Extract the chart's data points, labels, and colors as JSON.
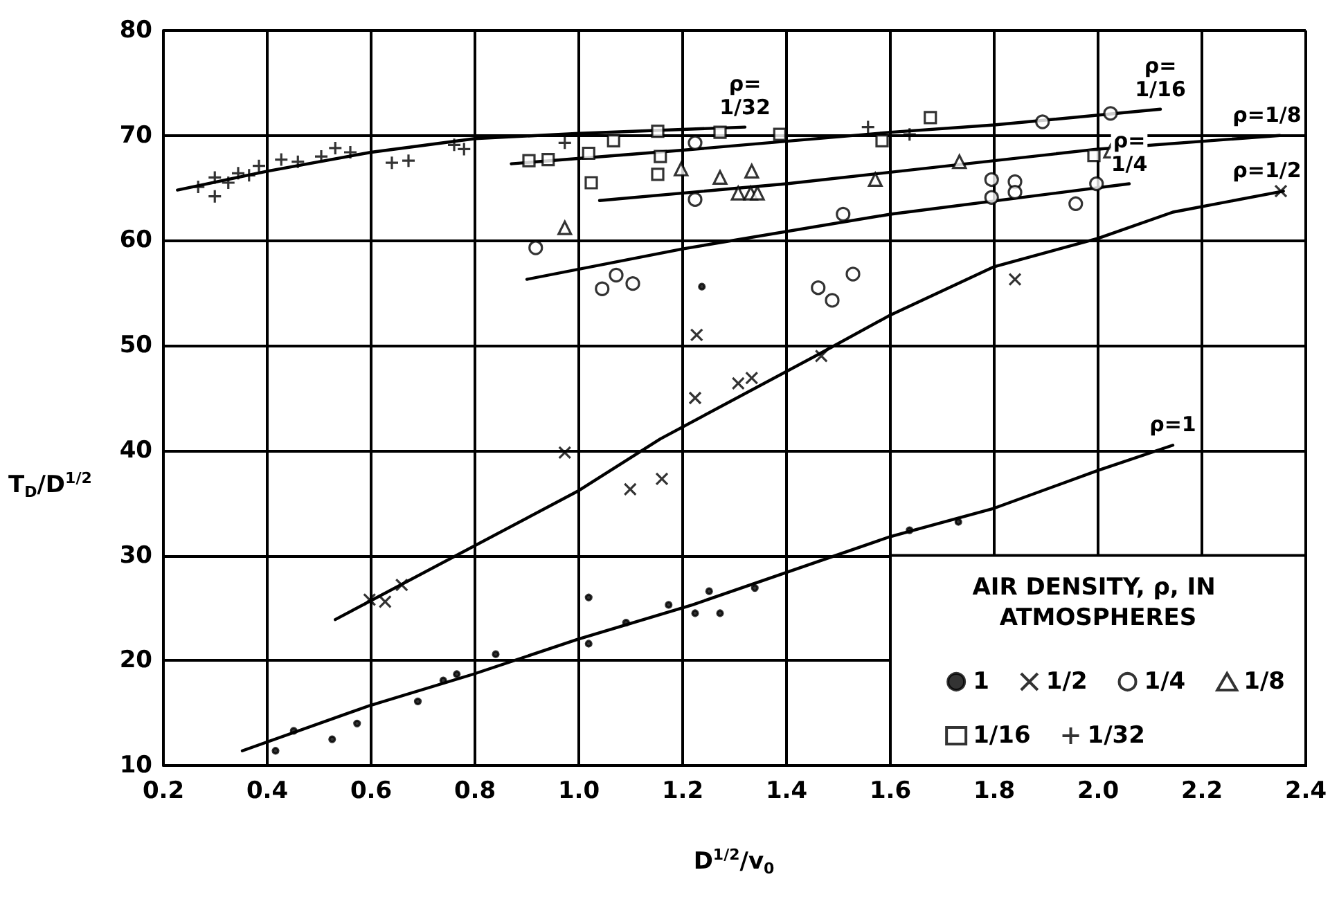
{
  "chart_data": {
    "type": "scatter",
    "xlabel": "D$^{1/2}$/v$_{0}$",
    "ylabel": "T$_{D}$/D$^{1/2}$",
    "legend_title": "AIR DENSITY, ρ, IN ATMOSPHERES",
    "legend": "bottom right",
    "grid": true,
    "xlim": [
      0.2,
      2.4
    ],
    "xticks": [
      0.2,
      0.4,
      0.6,
      0.8,
      {
        "value": 1,
        "label": "1.0"
      },
      1.2,
      1.4,
      1.6,
      1.8,
      {
        "value": 2,
        "label": "2.0"
      },
      2.2,
      2.4
    ],
    "ylim": [
      10,
      80
    ],
    "yticks": [
      10,
      20,
      30,
      40,
      50,
      60,
      70,
      80
    ],
    "series": [
      {
        "name": "1",
        "color": "#000000",
        "marker": "point",
        "x": [
          0.416,
          0.451,
          0.525,
          0.573,
          0.69,
          0.739,
          0.765,
          0.84,
          1.019,
          1.019,
          1.091,
          1.173,
          1.224,
          1.251,
          1.272,
          1.339,
          1.637,
          1.731,
          1.237
        ],
        "values": [
          11.4,
          13.3,
          12.5,
          14.0,
          16.1,
          18.1,
          18.7,
          20.6,
          26.0,
          21.6,
          23.6,
          25.3,
          24.5,
          26.6,
          24.5,
          26.9,
          32.4,
          33.2,
          55.6
        ]
      },
      {
        "name": "1/2",
        "color": "#000000",
        "marker": "cross",
        "x": [
          0.597,
          0.627,
          0.659,
          0.973,
          1.099,
          1.16,
          1.224,
          1.307,
          1.333,
          1.227,
          1.467,
          1.84,
          2.352
        ],
        "values": [
          25.8,
          25.6,
          27.2,
          39.8,
          36.3,
          37.3,
          45.0,
          46.4,
          46.9,
          51.0,
          49.0,
          56.3,
          64.7
        ]
      },
      {
        "name": "1/4",
        "color": "#000000",
        "marker": "circle",
        "x": [
          0.917,
          1.045,
          1.072,
          1.104,
          1.224,
          1.224,
          1.509,
          1.461,
          1.488,
          1.528,
          1.795,
          1.795,
          1.84,
          1.84,
          1.957,
          1.997,
          1.893,
          2.024
        ],
        "values": [
          59.3,
          55.4,
          56.7,
          55.9,
          69.3,
          63.9,
          62.5,
          55.5,
          54.3,
          56.8,
          65.8,
          64.1,
          65.6,
          64.6,
          63.5,
          65.4,
          71.3,
          72.1
        ]
      },
      {
        "name": "1/8",
        "color": "#000000",
        "marker": "triangle",
        "x": [
          0.973,
          1.197,
          1.272,
          1.333,
          1.307,
          1.331,
          1.344,
          1.571,
          1.733,
          2.024
        ],
        "values": [
          61.2,
          66.8,
          66.0,
          66.6,
          64.5,
          64.5,
          64.5,
          65.8,
          67.5,
          68.5
        ]
      },
      {
        "name": "1/16",
        "color": "#000000",
        "marker": "square",
        "x": [
          0.904,
          0.941,
          1.019,
          1.024,
          1.067,
          1.152,
          1.157,
          1.152,
          1.272,
          1.387,
          1.584,
          1.677,
          1.992
        ],
        "values": [
          67.6,
          67.7,
          68.3,
          65.5,
          69.5,
          70.4,
          68.0,
          66.3,
          70.3,
          70.1,
          69.5,
          71.7,
          68.1
        ]
      },
      {
        "name": "1/32",
        "color": "#000000",
        "marker": "plus",
        "x": [
          0.267,
          0.299,
          0.299,
          0.325,
          0.344,
          0.365,
          0.384,
          0.427,
          0.459,
          0.504,
          0.531,
          0.56,
          0.64,
          0.672,
          0.76,
          0.779,
          0.973,
          1.557,
          1.637
        ],
        "values": [
          65.1,
          66.0,
          64.2,
          65.5,
          66.4,
          66.2,
          67.1,
          67.7,
          67.5,
          68.0,
          68.8,
          68.4,
          67.4,
          67.6,
          69.1,
          68.7,
          69.3,
          70.8,
          70.1
        ]
      },
      {
        "type": "line",
        "color": "#000000",
        "marker": "none",
        "x": [
          0.352,
          0.597,
          0.797,
          0.997,
          1.219,
          1.6,
          1.8,
          2.0,
          2.144
        ],
        "values": [
          11.4,
          15.7,
          18.7,
          22.0,
          25.3,
          31.8,
          34.5,
          38.1,
          40.5
        ]
      },
      {
        "type": "line",
        "color": "#000000",
        "marker": "none",
        "x": [
          0.531,
          0.997,
          1.157,
          1.467,
          1.6,
          1.8,
          2.0,
          2.144,
          2.357
        ],
        "values": [
          23.9,
          36.1,
          41.1,
          49.3,
          52.9,
          57.5,
          60.2,
          62.7,
          64.7
        ]
      },
      {
        "type": "line",
        "color": "#000000",
        "marker": "none",
        "x": [
          0.9,
          1.2,
          1.6,
          2.06
        ],
        "values": [
          56.3,
          59.2,
          62.5,
          65.4
        ]
      },
      {
        "type": "line",
        "color": "#000000",
        "marker": "none",
        "x": [
          1.04,
          1.4,
          2.0,
          2.35
        ],
        "values": [
          63.8,
          65.4,
          68.7,
          70.0
        ]
      },
      {
        "type": "line",
        "color": "#000000",
        "marker": "none",
        "x": [
          0.87,
          1.2,
          1.6,
          1.8,
          2.12
        ],
        "values": [
          67.3,
          68.6,
          70.3,
          71.0,
          72.5
        ]
      },
      {
        "type": "line",
        "color": "#000000",
        "marker": "none",
        "x": [
          0.227,
          0.4,
          0.6,
          0.8,
          1.0,
          1.32
        ],
        "values": [
          64.8,
          66.6,
          68.4,
          69.7,
          70.2,
          70.8
        ]
      }
    ],
    "annotations": [
      {
        "text": "ρ= 1/32",
        "x": 1.32,
        "y": 70.8
      },
      {
        "text": "ρ= 1/16",
        "x": 2.12,
        "y": 72.5
      },
      {
        "text": "ρ=1/8",
        "x": 2.35,
        "y": 70.0
      },
      {
        "text": "ρ= 1/4",
        "x": 2.06,
        "y": 65.4
      },
      {
        "text": "ρ=1/2",
        "x": 2.357,
        "y": 64.7
      },
      {
        "text": "ρ=1",
        "x": 2.144,
        "y": 40.5
      }
    ]
  }
}
